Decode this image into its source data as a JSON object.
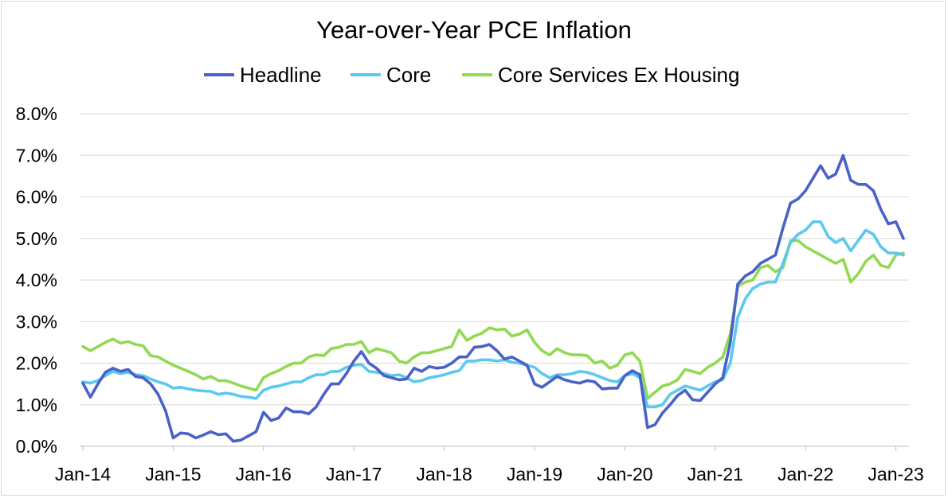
{
  "chart_data": {
    "type": "line",
    "title": "Year-over-Year PCE Inflation",
    "xlabel": "",
    "ylabel": "",
    "ylim": [
      0,
      8
    ],
    "y_ticks": [
      "0.0%",
      "1.0%",
      "2.0%",
      "3.0%",
      "4.0%",
      "5.0%",
      "6.0%",
      "7.0%",
      "8.0%"
    ],
    "x_tick_labels": [
      "Jan-14",
      "Jan-15",
      "Jan-16",
      "Jan-17",
      "Jan-18",
      "Jan-19",
      "Jan-20",
      "Jan-21",
      "Jan-22",
      "Jan-23"
    ],
    "x_start": "Jan-14",
    "x_end": "Feb-23",
    "legend_position": "top",
    "gridlines": "horizontal",
    "series": [
      {
        "name": "Headline",
        "color": "#4a62c8",
        "values": [
          1.52,
          1.18,
          1.5,
          1.78,
          1.88,
          1.8,
          1.85,
          1.68,
          1.65,
          1.5,
          1.25,
          0.85,
          0.2,
          0.32,
          0.3,
          0.2,
          0.27,
          0.35,
          0.28,
          0.3,
          0.12,
          0.15,
          0.25,
          0.35,
          0.82,
          0.62,
          0.68,
          0.92,
          0.83,
          0.83,
          0.78,
          0.95,
          1.25,
          1.5,
          1.5,
          1.75,
          2.05,
          2.28,
          2.0,
          1.88,
          1.7,
          1.65,
          1.6,
          1.62,
          1.88,
          1.8,
          1.92,
          1.88,
          1.9,
          2.0,
          2.15,
          2.15,
          2.38,
          2.4,
          2.45,
          2.3,
          2.1,
          2.15,
          2.05,
          1.95,
          1.5,
          1.42,
          1.55,
          1.68,
          1.6,
          1.55,
          1.52,
          1.58,
          1.55,
          1.38,
          1.4,
          1.4,
          1.7,
          1.82,
          1.72,
          0.45,
          0.52,
          0.8,
          1.0,
          1.22,
          1.35,
          1.12,
          1.1,
          1.3,
          1.5,
          1.65,
          2.5,
          3.9,
          4.1,
          4.2,
          4.4,
          4.5,
          4.6,
          5.25,
          5.85,
          5.95,
          6.15,
          6.45,
          6.75,
          6.45,
          6.55,
          7.0,
          6.4,
          6.3,
          6.3,
          6.15,
          5.7,
          5.35,
          5.4,
          5.0
        ]
      },
      {
        "name": "Core",
        "color": "#5bc8f0",
        "values": [
          1.55,
          1.52,
          1.58,
          1.7,
          1.8,
          1.75,
          1.78,
          1.72,
          1.7,
          1.62,
          1.55,
          1.5,
          1.4,
          1.42,
          1.38,
          1.35,
          1.33,
          1.32,
          1.25,
          1.28,
          1.25,
          1.2,
          1.18,
          1.15,
          1.35,
          1.42,
          1.45,
          1.5,
          1.55,
          1.55,
          1.65,
          1.72,
          1.72,
          1.8,
          1.8,
          1.9,
          1.95,
          1.97,
          1.8,
          1.78,
          1.75,
          1.7,
          1.72,
          1.65,
          1.55,
          1.58,
          1.65,
          1.68,
          1.72,
          1.78,
          1.82,
          2.05,
          2.05,
          2.08,
          2.08,
          2.05,
          2.08,
          2.02,
          2.0,
          1.95,
          1.9,
          1.75,
          1.65,
          1.72,
          1.72,
          1.75,
          1.8,
          1.78,
          1.72,
          1.65,
          1.58,
          1.55,
          1.7,
          1.75,
          1.65,
          0.95,
          0.95,
          1.0,
          1.25,
          1.35,
          1.45,
          1.4,
          1.35,
          1.45,
          1.55,
          1.6,
          2.0,
          3.1,
          3.55,
          3.8,
          3.9,
          3.95,
          3.95,
          4.4,
          4.9,
          5.1,
          5.2,
          5.4,
          5.4,
          5.05,
          4.9,
          5.0,
          4.7,
          4.95,
          5.2,
          5.1,
          4.8,
          4.65,
          4.65,
          4.6
        ]
      },
      {
        "name": "Core Services Ex Housing",
        "color": "#92d952",
        "values": [
          2.4,
          2.3,
          2.4,
          2.5,
          2.58,
          2.48,
          2.52,
          2.45,
          2.42,
          2.18,
          2.15,
          2.05,
          1.95,
          1.88,
          1.8,
          1.72,
          1.62,
          1.68,
          1.58,
          1.58,
          1.52,
          1.45,
          1.4,
          1.35,
          1.65,
          1.75,
          1.82,
          1.92,
          2.0,
          2.0,
          2.15,
          2.2,
          2.18,
          2.35,
          2.38,
          2.45,
          2.45,
          2.52,
          2.25,
          2.35,
          2.3,
          2.25,
          2.05,
          2.0,
          2.15,
          2.25,
          2.25,
          2.3,
          2.35,
          2.4,
          2.8,
          2.55,
          2.65,
          2.72,
          2.85,
          2.8,
          2.82,
          2.65,
          2.7,
          2.8,
          2.5,
          2.3,
          2.2,
          2.35,
          2.25,
          2.2,
          2.2,
          2.18,
          2.0,
          2.05,
          1.88,
          1.95,
          2.2,
          2.25,
          2.05,
          1.15,
          1.3,
          1.45,
          1.5,
          1.6,
          1.85,
          1.8,
          1.75,
          1.9,
          2.0,
          2.15,
          2.7,
          3.85,
          3.95,
          4.0,
          4.3,
          4.35,
          4.2,
          4.3,
          4.95,
          4.95,
          4.8,
          4.7,
          4.6,
          4.5,
          4.4,
          4.5,
          3.95,
          4.15,
          4.45,
          4.6,
          4.35,
          4.3,
          4.6,
          4.65
        ]
      }
    ]
  }
}
